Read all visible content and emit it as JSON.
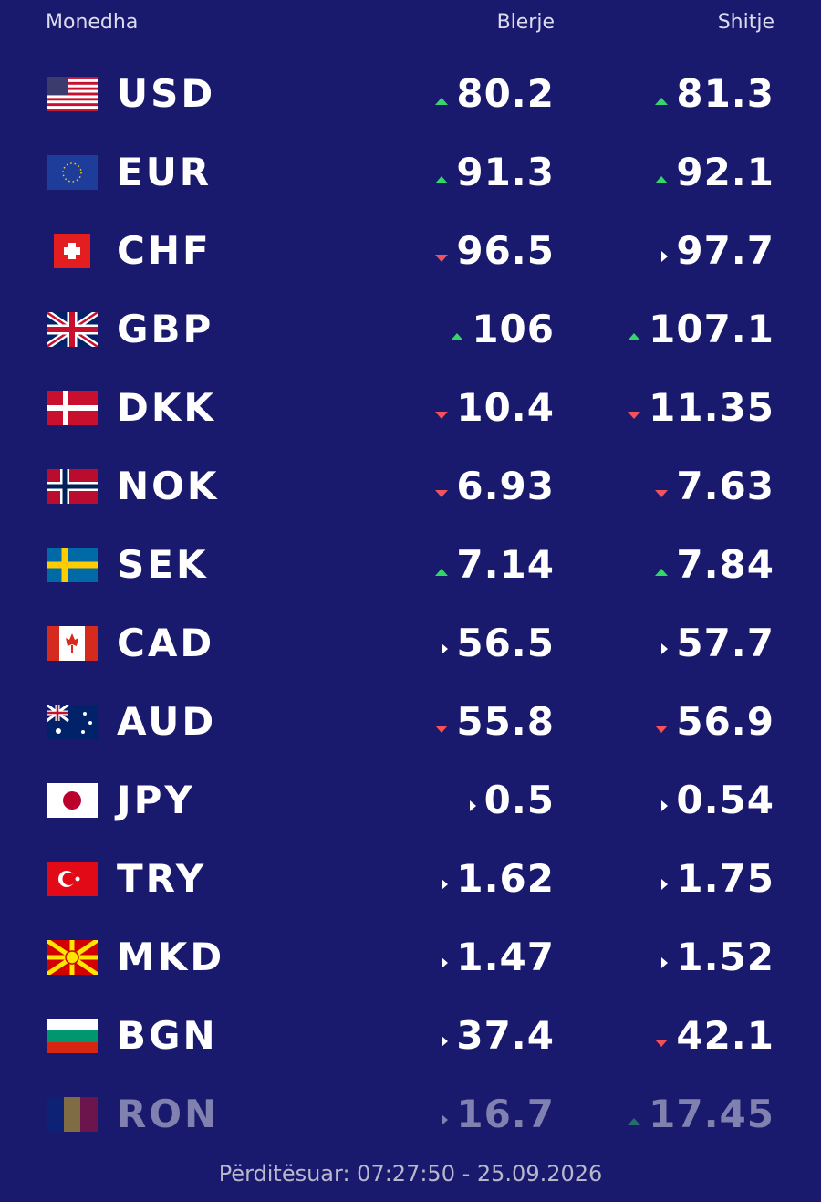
{
  "header": {
    "currency": "Monedha",
    "buy": "Blerje",
    "sell": "Shitje"
  },
  "table": {
    "rows": [
      {
        "code": "USD",
        "buy": 80.2,
        "buy_trend": "up",
        "sell": 81.3,
        "sell_trend": "up"
      },
      {
        "code": "EUR",
        "buy": 91.3,
        "buy_trend": "up",
        "sell": 92.1,
        "sell_trend": "up"
      },
      {
        "code": "CHF",
        "buy": 96.5,
        "buy_trend": "down",
        "sell": 97.7,
        "sell_trend": "flat"
      },
      {
        "code": "GBP",
        "buy": 106,
        "buy_trend": "up",
        "sell": 107.1,
        "sell_trend": "up"
      },
      {
        "code": "DKK",
        "buy": 10.4,
        "buy_trend": "down",
        "sell": 11.35,
        "sell_trend": "down"
      },
      {
        "code": "NOK",
        "buy": 6.93,
        "buy_trend": "down",
        "sell": 7.63,
        "sell_trend": "down"
      },
      {
        "code": "SEK",
        "buy": 7.14,
        "buy_trend": "up",
        "sell": 7.84,
        "sell_trend": "up"
      },
      {
        "code": "CAD",
        "buy": 56.5,
        "buy_trend": "flat",
        "sell": 57.7,
        "sell_trend": "flat"
      },
      {
        "code": "AUD",
        "buy": 55.8,
        "buy_trend": "down",
        "sell": 56.9,
        "sell_trend": "down"
      },
      {
        "code": "JPY",
        "buy": 0.5,
        "buy_trend": "flat",
        "sell": 0.54,
        "sell_trend": "flat"
      },
      {
        "code": "TRY",
        "buy": 1.62,
        "buy_trend": "flat",
        "sell": 1.75,
        "sell_trend": "flat"
      },
      {
        "code": "MKD",
        "buy": 1.47,
        "buy_trend": "flat",
        "sell": 1.52,
        "sell_trend": "flat"
      },
      {
        "code": "BGN",
        "buy": 37.4,
        "buy_trend": "flat",
        "sell": 42.1,
        "sell_trend": "down"
      },
      {
        "code": "RON",
        "buy": 16.7,
        "buy_trend": "flat",
        "sell": 17.45,
        "sell_trend": "up"
      }
    ]
  },
  "footer": "Përditësuar: 07:27:50 - 25.09.2026"
}
